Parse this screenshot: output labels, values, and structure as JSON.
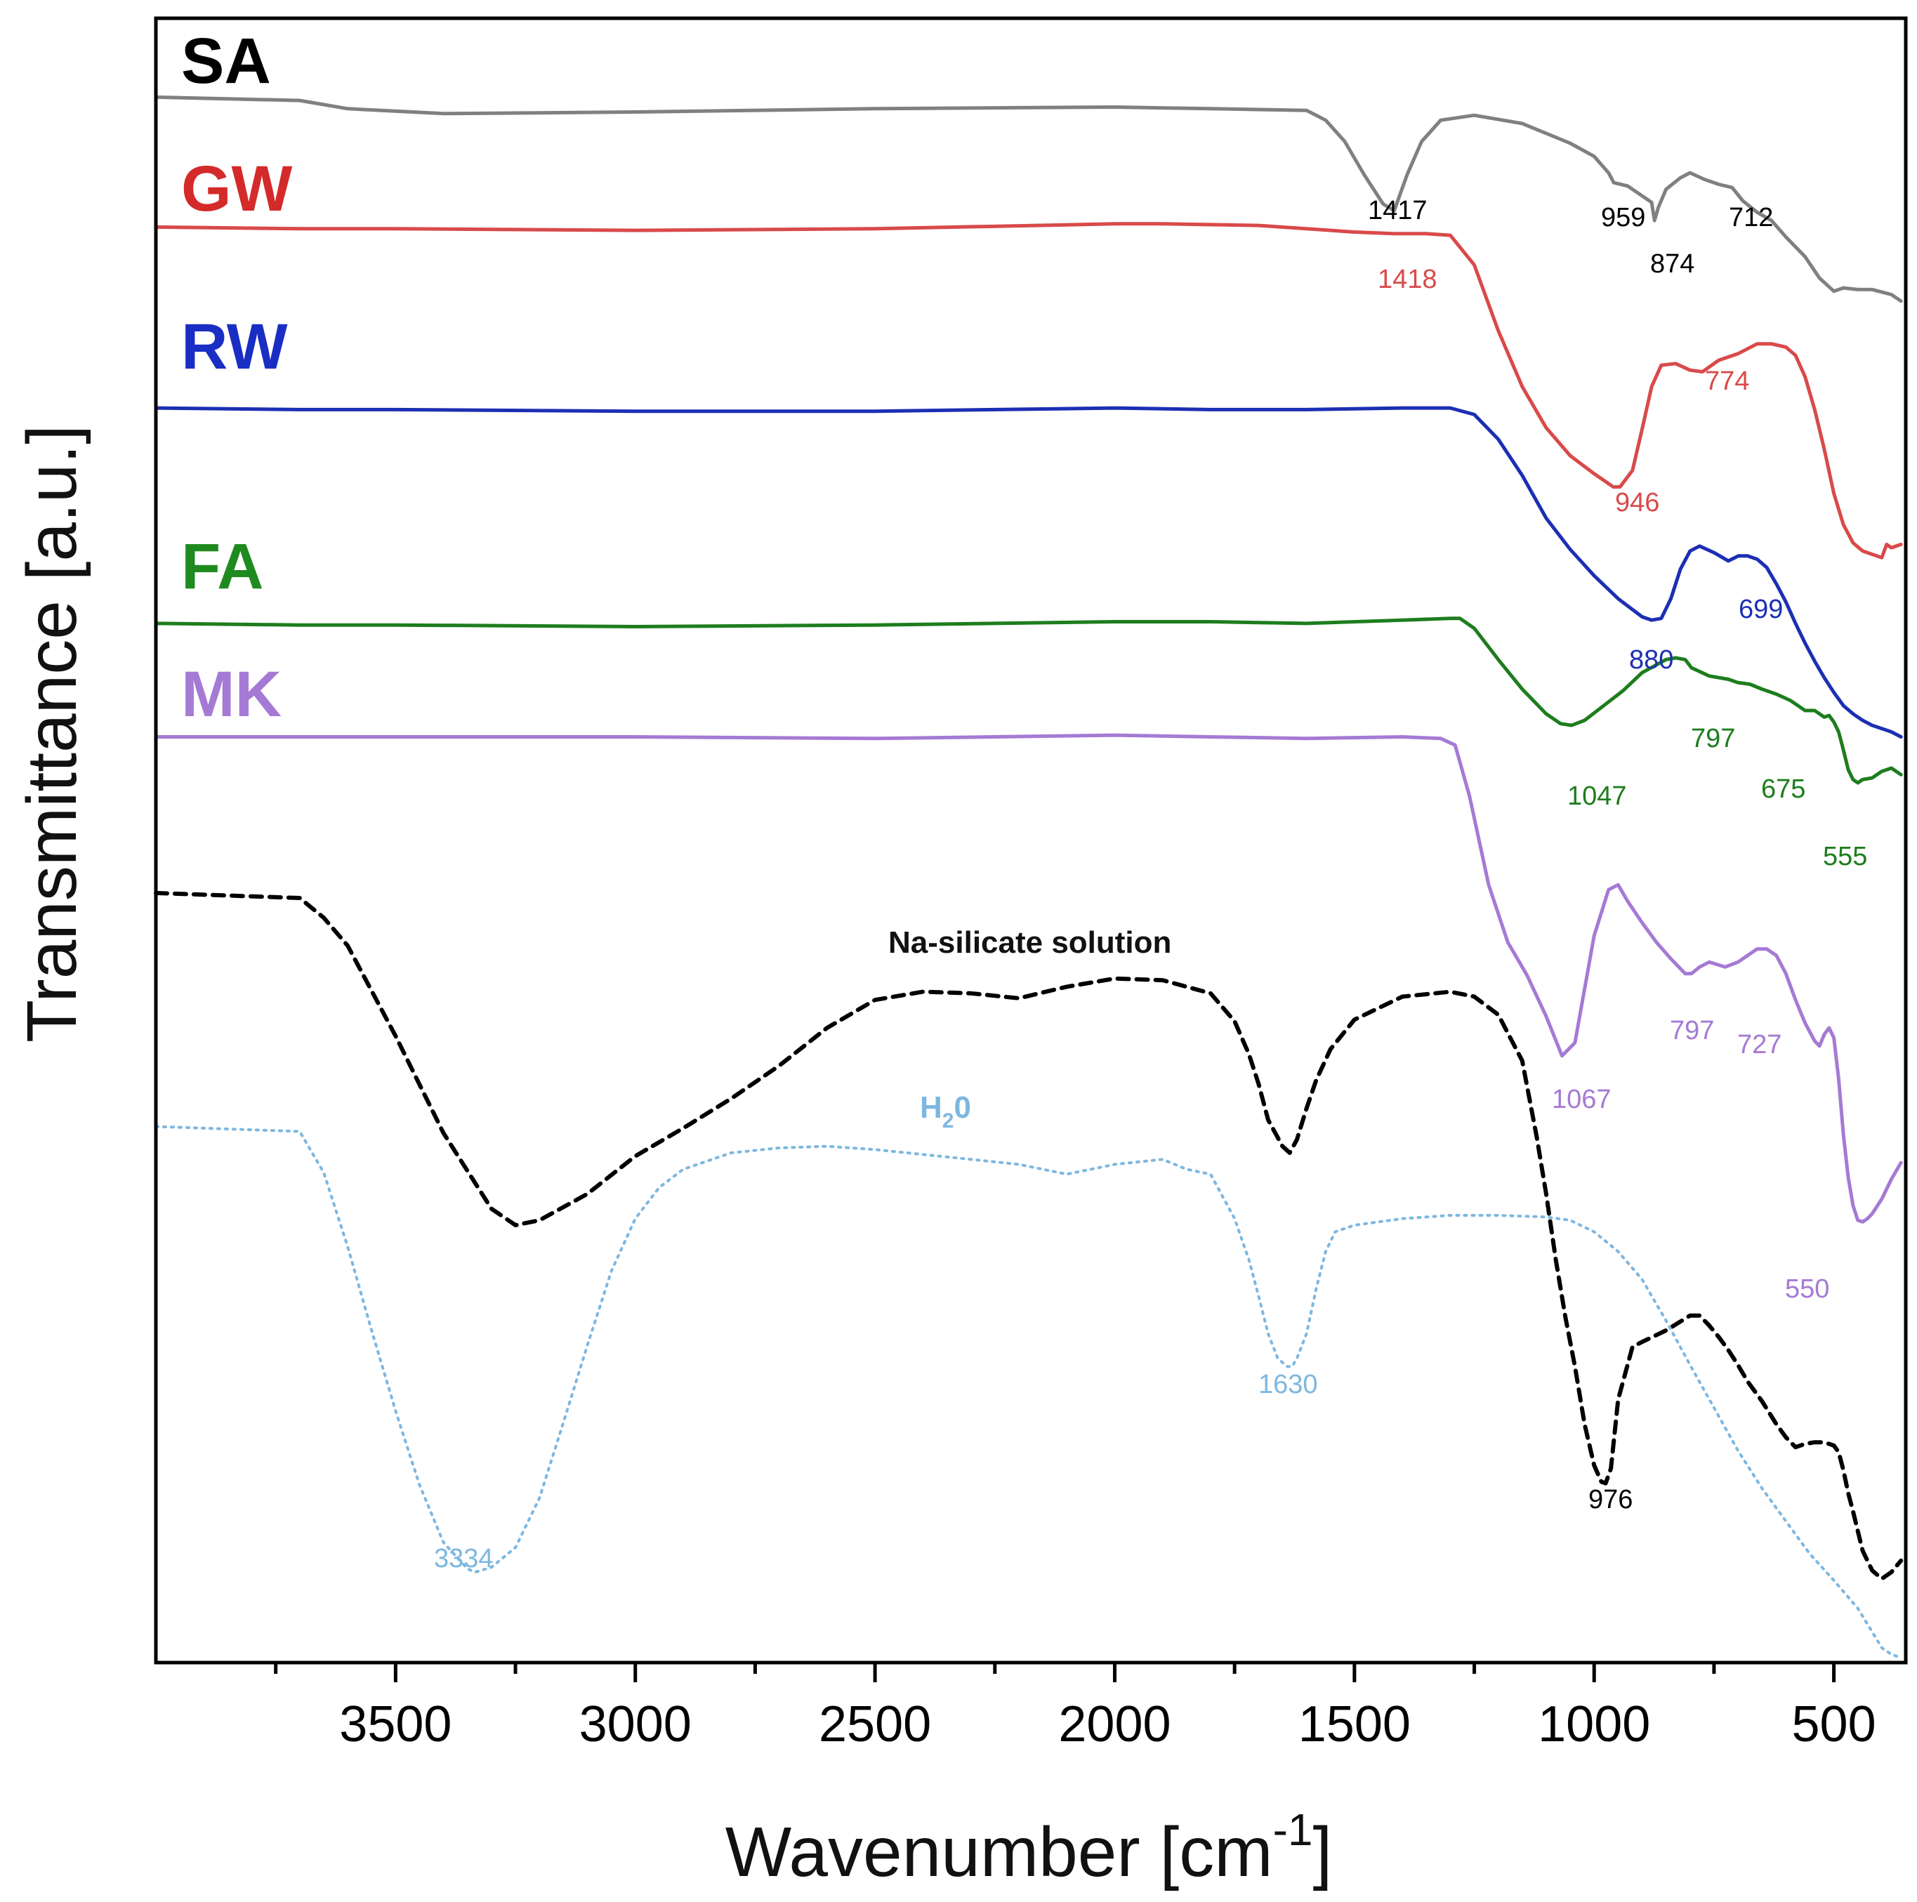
{
  "chart_data": {
    "type": "line",
    "title": "",
    "xlabel": "Wavenumber [cm",
    "xlabel_sup": "-1",
    "xlabel_end": "]",
    "ylabel": "Transmittance [a.u.]",
    "xlim": [
      4000,
      350
    ],
    "ylim": [
      0,
      100
    ],
    "xticks": [
      3500,
      3000,
      2500,
      2000,
      1500,
      1000,
      500
    ],
    "xtick_labels": [
      "3500",
      "3000",
      "2500",
      "2000",
      "1500",
      "1000",
      "500"
    ],
    "legend": "none (series labelled inline on the left)",
    "series": [
      {
        "name": "SA",
        "color": "#808080",
        "label_color": "#000000",
        "style": "solid",
        "x": [
          4000,
          3700,
          3600,
          3400,
          3000,
          2500,
          2000,
          1800,
          1600,
          1560,
          1520,
          1480,
          1440,
          1417,
          1390,
          1360,
          1320,
          1250,
          1150,
          1050,
          1000,
          970,
          959,
          930,
          900,
          880,
          874,
          866,
          850,
          820,
          800,
          770,
          740,
          712,
          690,
          660,
          630,
          600,
          560,
          530,
          500,
          480,
          450,
          420,
          380,
          360
        ],
        "y": [
          95.2,
          95.0,
          94.5,
          94.2,
          94.3,
          94.5,
          94.6,
          94.5,
          94.4,
          93.8,
          92.5,
          90.5,
          88.7,
          88.3,
          90.5,
          92.5,
          93.8,
          94.1,
          93.6,
          92.4,
          91.6,
          90.6,
          90.0,
          89.8,
          89.2,
          88.8,
          87.7,
          88.5,
          89.6,
          90.3,
          90.6,
          90.2,
          89.9,
          89.7,
          88.9,
          88.2,
          87.7,
          86.7,
          85.5,
          84.2,
          83.4,
          83.6,
          83.5,
          83.5,
          83.2,
          82.8
        ]
      },
      {
        "name": "GW",
        "color": "#d94a4a",
        "label_color": "#d42a2a",
        "style": "solid",
        "x": [
          4000,
          3700,
          3500,
          3000,
          2500,
          2000,
          1900,
          1700,
          1500,
          1418,
          1350,
          1300,
          1250,
          1200,
          1150,
          1100,
          1050,
          1000,
          960,
          946,
          920,
          900,
          880,
          860,
          830,
          800,
          774,
          740,
          700,
          660,
          630,
          600,
          580,
          560,
          540,
          520,
          500,
          480,
          460,
          440,
          420,
          400,
          390,
          380,
          360
        ],
        "y": [
          87.3,
          87.2,
          87.2,
          87.1,
          87.2,
          87.5,
          87.5,
          87.4,
          87.0,
          86.9,
          86.9,
          86.8,
          85.0,
          81.0,
          77.6,
          75.1,
          73.4,
          72.3,
          71.5,
          71.5,
          72.5,
          75.0,
          77.6,
          78.9,
          79.0,
          78.6,
          78.5,
          79.2,
          79.6,
          80.2,
          80.2,
          80.0,
          79.5,
          78.2,
          76.2,
          73.8,
          71.1,
          69.2,
          68.1,
          67.6,
          67.4,
          67.2,
          68.0,
          67.8,
          68.0
        ]
      },
      {
        "name": "RW",
        "color": "#1c2fb3",
        "label_color": "#1a2ec4",
        "style": "solid",
        "x": [
          4000,
          3700,
          3500,
          3000,
          2500,
          2000,
          1800,
          1600,
          1400,
          1300,
          1250,
          1200,
          1150,
          1100,
          1050,
          1000,
          950,
          900,
          880,
          860,
          840,
          820,
          800,
          780,
          750,
          720,
          699,
          680,
          660,
          640,
          620,
          600,
          580,
          560,
          540,
          520,
          500,
          480,
          460,
          440,
          420,
          400,
          380,
          360
        ],
        "y": [
          76.3,
          76.2,
          76.2,
          76.1,
          76.1,
          76.3,
          76.2,
          76.2,
          76.3,
          76.3,
          75.9,
          74.4,
          72.2,
          69.6,
          67.7,
          66.1,
          64.7,
          63.6,
          63.4,
          63.5,
          64.7,
          66.5,
          67.6,
          67.9,
          67.5,
          67.0,
          67.3,
          67.3,
          67.1,
          66.6,
          65.6,
          64.5,
          63.2,
          62.0,
          60.9,
          59.9,
          59.0,
          58.2,
          57.7,
          57.3,
          57.0,
          56.8,
          56.6,
          56.3
        ]
      },
      {
        "name": "FA",
        "color": "#1d7d1d",
        "label_color": "#1f8a1f",
        "style": "solid",
        "x": [
          4000,
          3700,
          3500,
          3000,
          2500,
          2000,
          1800,
          1600,
          1400,
          1300,
          1280,
          1250,
          1200,
          1150,
          1100,
          1070,
          1047,
          1020,
          980,
          940,
          900,
          850,
          830,
          810,
          797,
          760,
          720,
          700,
          675,
          650,
          620,
          590,
          560,
          540,
          520,
          510,
          500,
          490,
          480,
          470,
          460,
          450,
          440,
          420,
          400,
          380,
          360
        ],
        "y": [
          63.2,
          63.1,
          63.1,
          63.0,
          63.1,
          63.3,
          63.3,
          63.2,
          63.4,
          63.5,
          63.5,
          62.9,
          61.0,
          59.2,
          57.7,
          57.1,
          57.0,
          57.3,
          58.2,
          59.1,
          60.2,
          61.0,
          61.1,
          61.0,
          60.5,
          60.0,
          59.8,
          59.6,
          59.5,
          59.2,
          58.9,
          58.5,
          57.9,
          57.9,
          57.5,
          57.6,
          57.2,
          56.6,
          55.5,
          54.3,
          53.7,
          53.5,
          53.7,
          53.8,
          54.2,
          54.4,
          54.0
        ]
      },
      {
        "name": "MK",
        "color": "#a57ad4",
        "label_color": "#a57ad4",
        "style": "solid",
        "x": [
          4000,
          3700,
          3500,
          3000,
          2500,
          2000,
          1800,
          1600,
          1400,
          1320,
          1290,
          1260,
          1220,
          1180,
          1140,
          1100,
          1067,
          1040,
          1000,
          970,
          950,
          930,
          900,
          870,
          840,
          810,
          797,
          780,
          760,
          727,
          700,
          680,
          660,
          640,
          620,
          600,
          580,
          560,
          540,
          530,
          520,
          510,
          500,
          490,
          480,
          470,
          460,
          450,
          440,
          430,
          420,
          400,
          380,
          360
        ],
        "y": [
          56.3,
          56.3,
          56.3,
          56.3,
          56.2,
          56.4,
          56.3,
          56.2,
          56.3,
          56.2,
          55.8,
          52.7,
          47.3,
          43.8,
          41.8,
          39.3,
          36.9,
          37.7,
          44.2,
          47.0,
          47.3,
          46.3,
          45.0,
          43.8,
          42.8,
          41.9,
          41.9,
          42.3,
          42.6,
          42.3,
          42.6,
          43.0,
          43.4,
          43.4,
          43.0,
          41.9,
          40.3,
          38.9,
          37.8,
          37.5,
          38.2,
          38.6,
          38.0,
          35.5,
          32.1,
          29.5,
          27.8,
          26.9,
          26.8,
          27.0,
          27.3,
          28.2,
          29.4,
          30.4
        ]
      },
      {
        "name": "Na-silicate solution",
        "color": "#000000",
        "label_color": "#000000",
        "style": "dashed",
        "x": [
          4000,
          3700,
          3650,
          3600,
          3500,
          3400,
          3300,
          3250,
          3200,
          3100,
          3000,
          2900,
          2800,
          2700,
          2600,
          2500,
          2400,
          2300,
          2200,
          2100,
          2000,
          1900,
          1800,
          1750,
          1720,
          1700,
          1680,
          1650,
          1635,
          1620,
          1600,
          1580,
          1550,
          1500,
          1400,
          1300,
          1250,
          1200,
          1150,
          1120,
          1100,
          1080,
          1060,
          1040,
          1020,
          1000,
          985,
          976,
          965,
          950,
          920,
          900,
          850,
          800,
          780,
          760,
          740,
          720,
          700,
          680,
          650,
          620,
          600,
          580,
          560,
          540,
          520,
          500,
          490,
          480,
          470,
          460,
          450,
          440,
          420,
          400,
          380,
          360
        ],
        "y": [
          46.8,
          46.5,
          45.3,
          43.6,
          38.1,
          32.2,
          27.6,
          26.6,
          26.9,
          28.5,
          30.8,
          32.5,
          34.3,
          36.3,
          38.6,
          40.3,
          40.8,
          40.7,
          40.4,
          41.1,
          41.6,
          41.5,
          40.7,
          39.0,
          37.0,
          35.2,
          33.0,
          31.4,
          31.0,
          31.8,
          33.7,
          35.4,
          37.3,
          39.1,
          40.5,
          40.8,
          40.5,
          39.4,
          36.6,
          32.0,
          28.5,
          24.5,
          21.0,
          18.0,
          14.5,
          12.0,
          11.0,
          10.9,
          11.8,
          16.0,
          19.2,
          19.5,
          20.2,
          21.1,
          21.1,
          20.5,
          19.8,
          19.0,
          18.1,
          17.1,
          15.9,
          14.5,
          13.7,
          13.1,
          13.3,
          13.4,
          13.4,
          13.2,
          12.8,
          11.7,
          10.3,
          9.2,
          8.0,
          6.8,
          5.6,
          5.1,
          5.5,
          6.2
        ]
      },
      {
        "name": "H20",
        "color": "#7db7e0",
        "label_color": "#7db7e0",
        "style": "dotted",
        "x": [
          4000,
          3700,
          3650,
          3600,
          3550,
          3500,
          3450,
          3400,
          3350,
          3334,
          3300,
          3250,
          3200,
          3150,
          3100,
          3050,
          3000,
          2950,
          2900,
          2800,
          2700,
          2600,
          2500,
          2400,
          2300,
          2200,
          2100,
          2000,
          1900,
          1850,
          1800,
          1750,
          1720,
          1700,
          1680,
          1660,
          1640,
          1630,
          1620,
          1600,
          1580,
          1560,
          1540,
          1500,
          1400,
          1300,
          1200,
          1100,
          1050,
          1000,
          950,
          900,
          850,
          800,
          750,
          700,
          650,
          600,
          550,
          500,
          450,
          400,
          380,
          360
        ],
        "y": [
          32.6,
          32.3,
          29.8,
          25.3,
          20.2,
          15.3,
          10.8,
          7.3,
          5.7,
          5.5,
          5.8,
          7.0,
          10.0,
          14.6,
          19.3,
          23.8,
          27.0,
          28.9,
          30.0,
          31.0,
          31.3,
          31.4,
          31.2,
          30.9,
          30.6,
          30.3,
          29.7,
          30.3,
          30.6,
          30.0,
          29.7,
          27.0,
          24.5,
          22.3,
          20.0,
          18.5,
          18.0,
          18.0,
          18.5,
          20.0,
          22.7,
          25.0,
          26.2,
          26.6,
          27.0,
          27.2,
          27.2,
          27.1,
          26.9,
          26.2,
          25.0,
          23.3,
          20.8,
          18.1,
          15.5,
          12.9,
          10.6,
          8.6,
          6.6,
          5.0,
          3.3,
          0.9,
          0.5,
          0.3
        ]
      }
    ],
    "series_labels": [
      {
        "text": "SA",
        "color": "#000000"
      },
      {
        "text": "GW",
        "color": "#d42a2a"
      },
      {
        "text": "RW",
        "color": "#1a2ec4"
      },
      {
        "text": "FA",
        "color": "#1f8a1f"
      },
      {
        "text": "MK",
        "color": "#a57ad4"
      }
    ],
    "inline_labels": {
      "na_silicate": "Na-silicate solution",
      "h2o_main": "H",
      "h2o_sub": "2",
      "h2o_end": "0"
    },
    "annotations": [
      {
        "text": "1417",
        "series": "SA",
        "color": "#000000"
      },
      {
        "text": "959",
        "series": "SA",
        "color": "#000000"
      },
      {
        "text": "874",
        "series": "SA",
        "color": "#000000"
      },
      {
        "text": "712",
        "series": "SA",
        "color": "#000000"
      },
      {
        "text": "1418",
        "series": "GW",
        "color": "#d94a4a"
      },
      {
        "text": "774",
        "series": "GW",
        "color": "#d94a4a"
      },
      {
        "text": "946",
        "series": "GW",
        "color": "#d94a4a"
      },
      {
        "text": "699",
        "series": "RW",
        "color": "#1c2fb3"
      },
      {
        "text": "880",
        "series": "RW",
        "color": "#1c2fb3"
      },
      {
        "text": "797",
        "series": "FA",
        "color": "#1d7d1d"
      },
      {
        "text": "1047",
        "series": "FA",
        "color": "#1d7d1d"
      },
      {
        "text": "675",
        "series": "FA",
        "color": "#1d7d1d"
      },
      {
        "text": "555",
        "series": "FA",
        "color": "#1d7d1d"
      },
      {
        "text": "797",
        "series": "MK",
        "color": "#a57ad4"
      },
      {
        "text": "727",
        "series": "MK",
        "color": "#a57ad4"
      },
      {
        "text": "1067",
        "series": "MK",
        "color": "#a57ad4"
      },
      {
        "text": "550",
        "series": "MK",
        "color": "#a57ad4"
      },
      {
        "text": "1630",
        "series": "H20",
        "color": "#7db7e0"
      },
      {
        "text": "976",
        "series": "Na-silicate solution",
        "color": "#000000"
      },
      {
        "text": "3334",
        "series": "H20",
        "color": "#7db7e0"
      }
    ]
  }
}
